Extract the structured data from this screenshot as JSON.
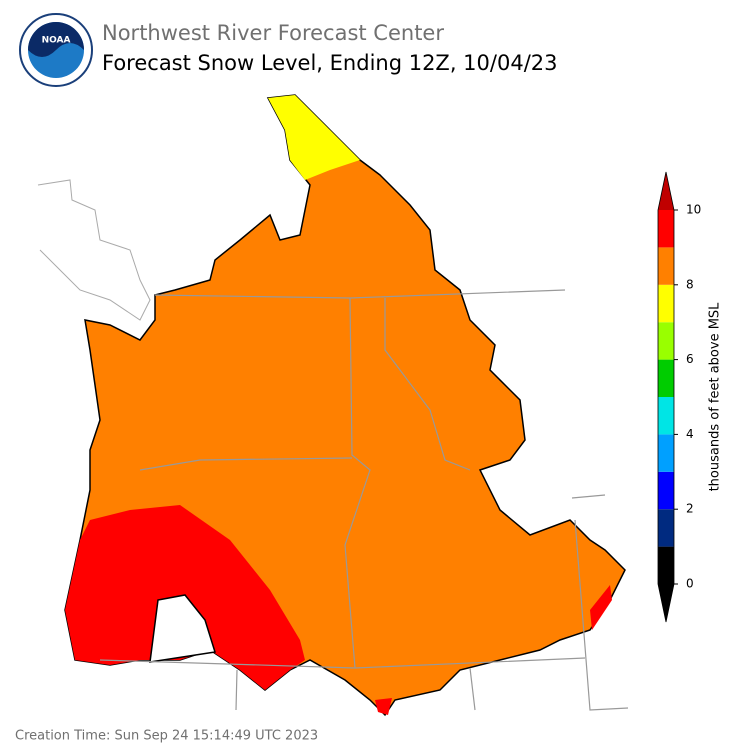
{
  "header": {
    "agency": "Northwest River Forecast Center",
    "title": "Forecast Snow Level, Ending 12Z, 10/04/23",
    "logo_text": "NOAA"
  },
  "colorbar": {
    "label": "thousands of feet above MSL",
    "range": [
      0,
      10
    ],
    "ticks": [
      0,
      2,
      4,
      6,
      8,
      10
    ],
    "bins": [
      0,
      1,
      2,
      3,
      4,
      5,
      6,
      7,
      8,
      9,
      10
    ],
    "colors": [
      "#000000",
      "#002a80",
      "#0000ff",
      "#00a0ff",
      "#00e5e5",
      "#00cc00",
      "#99ff00",
      "#ffff00",
      "#ff8000",
      "#ff0000"
    ],
    "under_color": "#000000",
    "over_color": "#c00000"
  },
  "footer": "Creation Time: Sun Sep 24 15:14:49 UTC 2023"
}
